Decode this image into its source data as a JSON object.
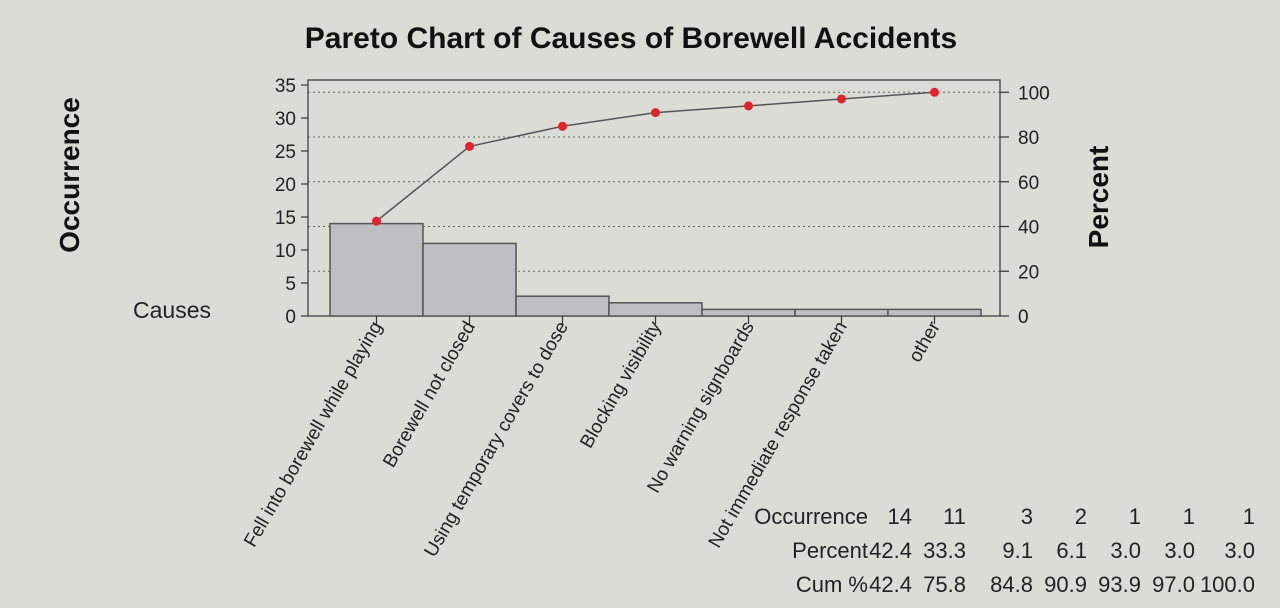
{
  "chart_data": {
    "type": "bar",
    "title": "Pareto Chart of Causes of Borewell Accidents",
    "xlabel": "Causes",
    "ylabel": "Occurrence",
    "y2label": "Percent",
    "ylim": [
      0,
      35
    ],
    "yticks": [
      0,
      5,
      10,
      15,
      20,
      25,
      30,
      35
    ],
    "y2lim": [
      0,
      100
    ],
    "y2ticks": [
      0,
      20,
      40,
      60,
      80,
      100
    ],
    "categories": [
      "Fell into borewell while playing",
      "Borewell not closed",
      "Using temporary covers to dose",
      "Blocking visibility",
      "No warning signboards",
      "Not immediate response taken",
      "other"
    ],
    "series": [
      {
        "name": "Occurrence",
        "type": "bar",
        "values": [
          14,
          11,
          3,
          2,
          1,
          1,
          1
        ]
      },
      {
        "name": "Cum %",
        "type": "line",
        "axis": "right",
        "values": [
          42.4,
          75.8,
          84.8,
          90.9,
          93.9,
          97.0,
          100.0
        ]
      }
    ],
    "table": {
      "rows": [
        {
          "label": "Occurrence",
          "values": [
            "14",
            "11",
            "3",
            "2",
            "1",
            "1",
            "1"
          ]
        },
        {
          "label": "Percent",
          "values": [
            "42.4",
            "33.3",
            "9.1",
            "6.1",
            "3.0",
            "3.0",
            "3.0"
          ]
        },
        {
          "label": "Cum %",
          "values": [
            "42.4",
            "75.8",
            "84.8",
            "90.9",
            "93.9",
            "97.0",
            "100.0"
          ]
        }
      ]
    },
    "grid": "horizontal-dotted",
    "colors": {
      "bar": "#bfbfc1",
      "bar_edge": "#555555",
      "line": "#555555",
      "marker": "#e0242f"
    }
  }
}
